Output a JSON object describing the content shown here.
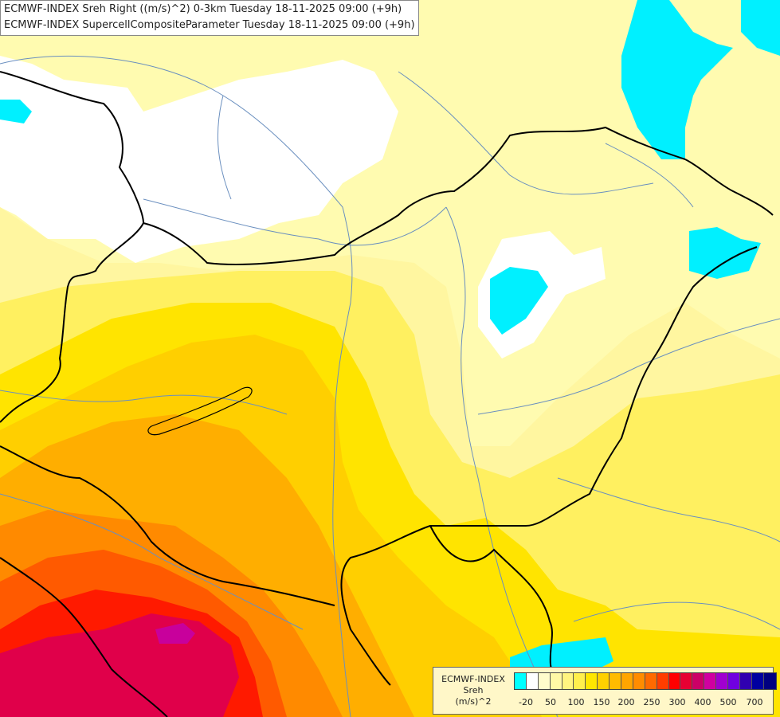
{
  "header": {
    "line1": "ECMWF-INDEX Sreh Right ((m/s)^2) 0-3km Tuesday 18-11-2025 09:00 (+9h)",
    "line2": "ECMWF-INDEX SupercellCompositeParameter Tuesday 18-11-2025 09:00 (+9h)"
  },
  "legend": {
    "line1": "ECMWF-INDEX",
    "line2": "Sreh",
    "line3": "(m/s)^2",
    "colors": [
      "#00ffff",
      "#ffffff",
      "#fffccc",
      "#fff9a6",
      "#fff480",
      "#ffef4d",
      "#ffe600",
      "#ffd000",
      "#ffbb00",
      "#ffa500",
      "#ff8c00",
      "#ff6a00",
      "#ff3d00",
      "#ff0000",
      "#e60033",
      "#cc0066",
      "#d000a0",
      "#a000d0",
      "#7000e0",
      "#3000b0",
      "#0000a0",
      "#000080"
    ],
    "ticks": [
      "-20",
      "50",
      "100",
      "150",
      "200",
      "250",
      "300",
      "400",
      "500",
      "700"
    ]
  }
}
